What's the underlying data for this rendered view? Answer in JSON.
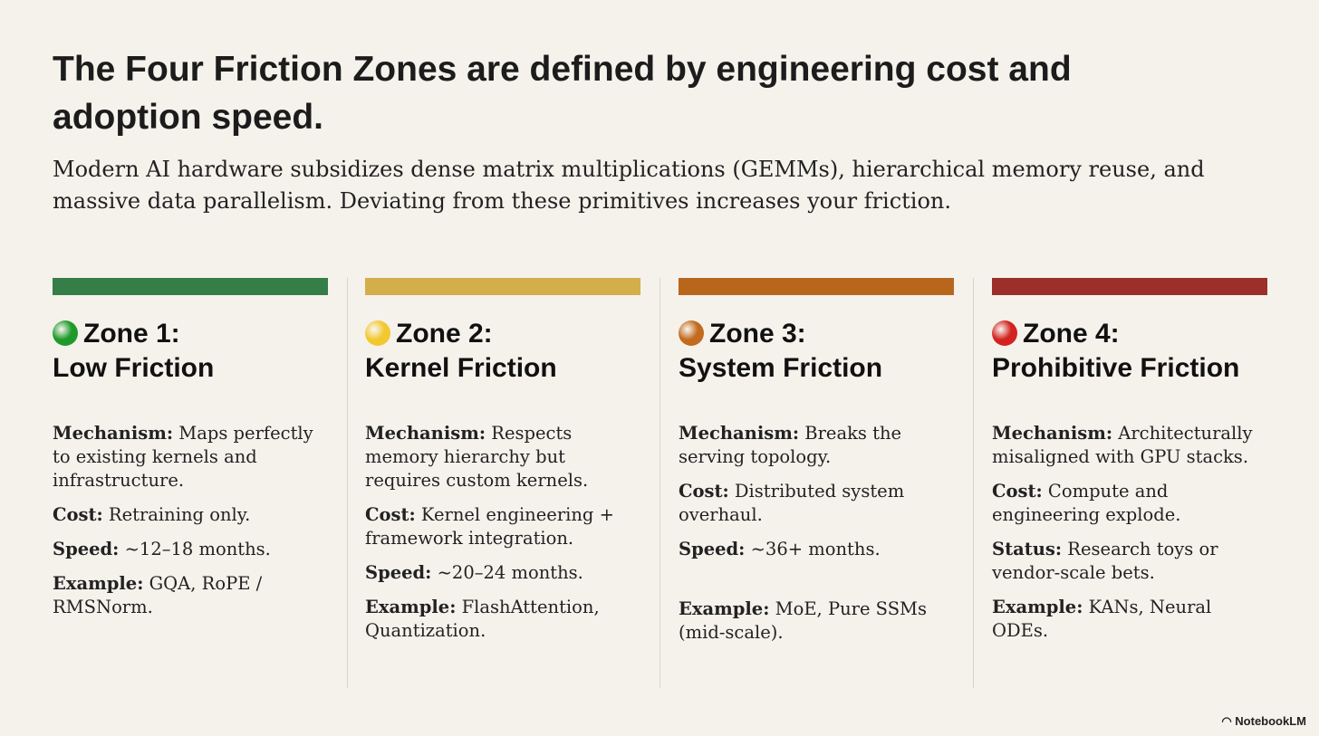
{
  "title": "The Four Friction Zones are defined by engineering cost and adoption speed.",
  "subtitle": "Modern AI hardware subsidizes dense matrix multiplications (GEMMs), hierarchical memory reuse, and massive data parallelism. Deviating from these primitives increases your friction.",
  "zones": [
    {
      "line1": "Zone 1:",
      "line2": "Low Friction",
      "color": "#357e47",
      "dot": "#1f9a2a",
      "items": [
        [
          "Mechanism:",
          "Maps perfectly to existing kernels and infrastructure."
        ],
        [
          "Cost:",
          "Retraining only."
        ],
        [
          "Speed:",
          "~12–18 months."
        ],
        [
          "Example:",
          "GQA, RoPE / RMSNorm."
        ]
      ]
    },
    {
      "line1": "Zone 2:",
      "line2": "Kernel Friction",
      "color": "#d4ae4a",
      "dot": "#f2c830",
      "items": [
        [
          "Mechanism:",
          "Respects memory hierarchy but requires custom kernels."
        ],
        [
          "Cost:",
          "Kernel engineering + framework integration."
        ],
        [
          "Speed:",
          "~20–24 months."
        ],
        [
          "Example:",
          "FlashAttention, Quantization."
        ]
      ]
    },
    {
      "line1": "Zone 3:",
      "line2": "System Friction",
      "color": "#b9661d",
      "dot": "#c26a1e",
      "items": [
        [
          "Mechanism:",
          "Breaks the serving topology."
        ],
        [
          "Cost:",
          "Distributed system overhaul."
        ],
        [
          "Speed:",
          "~36+ months."
        ],
        [
          "Example:",
          "MoE, Pure SSMs (mid-scale)."
        ]
      ]
    },
    {
      "line1": "Zone 4:",
      "line2": "Prohibitive Friction",
      "color": "#9b2f2a",
      "dot": "#d3221f",
      "items": [
        [
          "Mechanism:",
          "Architecturally misaligned with GPU stacks."
        ],
        [
          "Cost:",
          "Compute and engineering explode."
        ],
        [
          "Status:",
          "Research toys or vendor-scale bets."
        ],
        [
          "Example:",
          "KANs, Neural ODEs."
        ]
      ]
    }
  ],
  "brand": "NotebookLM"
}
